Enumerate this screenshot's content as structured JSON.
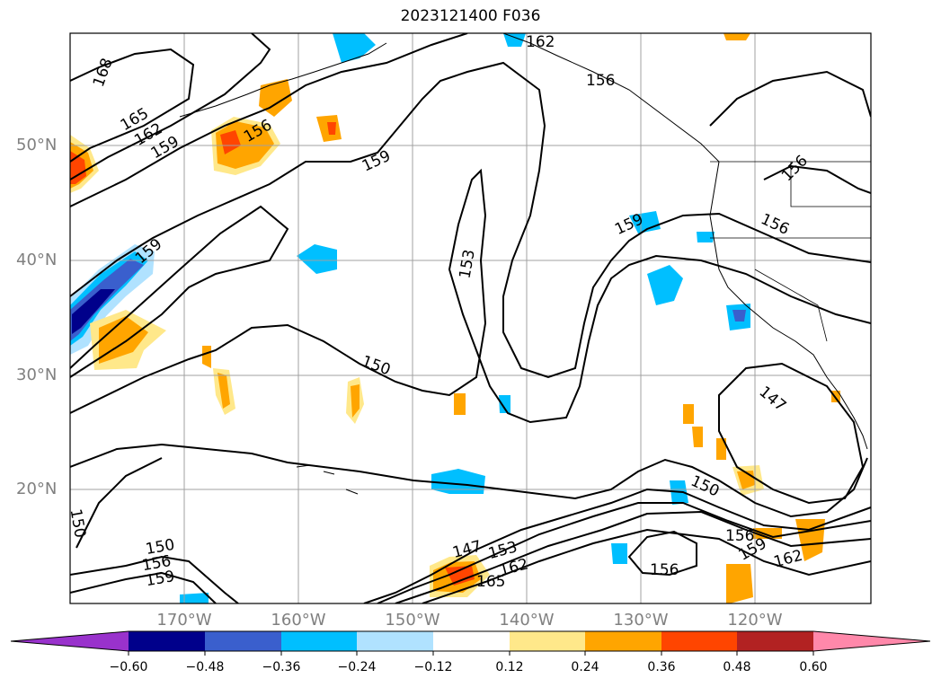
{
  "title": "2023121400 F036",
  "lat_labels": [
    "50°N",
    "40°N",
    "30°N",
    "20°N"
  ],
  "lon_labels": [
    "170°W",
    "160°W",
    "150°W",
    "140°W",
    "130°W",
    "120°W"
  ],
  "colorbar": {
    "ticks": [
      "−0.60",
      "−0.48",
      "−0.36",
      "−0.24",
      "−0.12",
      "0.12",
      "0.24",
      "0.36",
      "0.48",
      "0.60"
    ],
    "colors": [
      "#9932cc",
      "#00008b",
      "#3a5fcd",
      "#00bfff",
      "#b0e2ff",
      "#ffffff",
      "#ffe88a",
      "#ffa500",
      "#ff4500",
      "#b22222",
      "#ff88aa"
    ]
  },
  "contour_labels": [
    "168",
    "165",
    "162",
    "159",
    "156",
    "162",
    "156",
    "159",
    "159",
    "159",
    "156",
    "156",
    "153",
    "150",
    "147",
    "150",
    "150",
    "147",
    "153",
    "162",
    "165",
    "156",
    "159",
    "162",
    "156",
    "150",
    "156",
    "159"
  ]
}
